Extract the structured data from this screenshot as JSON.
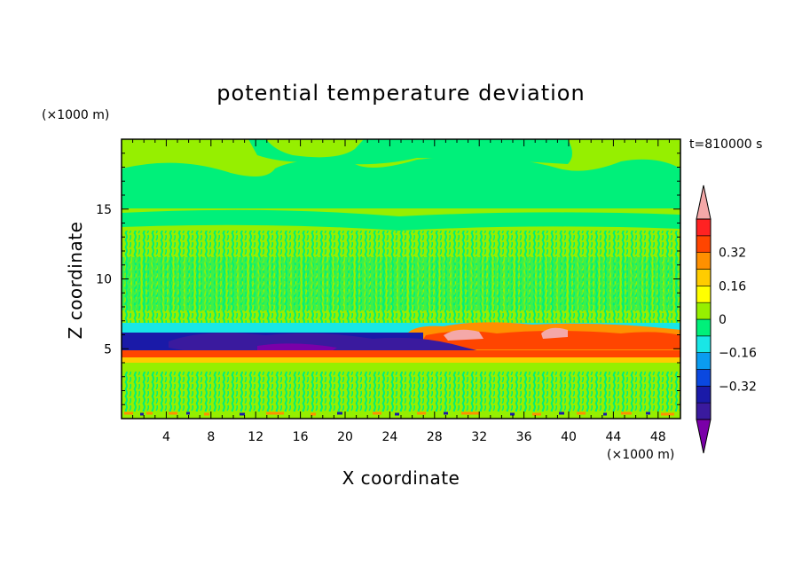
{
  "chart_data": {
    "type": "heatmap",
    "title": "potential temperature deviation",
    "xlabel": "X coordinate",
    "ylabel": "Z coordinate",
    "x_unit": "(×1000 m)",
    "y_unit": "(×1000 m)",
    "time_label": "t=810000 s",
    "xlim": [
      0,
      50
    ],
    "ylim": [
      0,
      20
    ],
    "x_ticks": [
      4,
      8,
      12,
      16,
      20,
      24,
      28,
      32,
      36,
      40,
      44,
      48
    ],
    "y_ticks": [
      5,
      10,
      15
    ],
    "colorbar": {
      "levels": [
        -0.48,
        -0.4,
        -0.32,
        -0.24,
        -0.16,
        -0.08,
        0,
        0.08,
        0.16,
        0.24,
        0.32,
        0.4,
        0.48
      ],
      "labeled_levels": [
        -0.32,
        -0.16,
        0,
        0.16,
        0.32
      ],
      "labels": [
        "0.32",
        "0.16",
        "0",
        "−0.16",
        "−0.32"
      ],
      "colors_bottom_to_top": [
        "#7a00a8",
        "#3a1a9e",
        "#1a1aa8",
        "#0a48e0",
        "#0a9cf0",
        "#19e6e6",
        "#00f07a",
        "#96ef00",
        "#ffff00",
        "#ffcc00",
        "#ff9000",
        "#ff4500",
        "#ff2222",
        "#f4a8a8"
      ]
    },
    "layers": [
      {
        "z_range": [
          17,
          20
        ],
        "value": 0.05
      },
      {
        "z_range": [
          12.5,
          17
        ],
        "value": 0.02
      },
      {
        "z_range": [
          7,
          12.5
        ],
        "value": 0.03
      },
      {
        "z_range": [
          6.3,
          7
        ],
        "value": -0.05
      },
      {
        "z_range": [
          5.1,
          6.3
        ],
        "value": -0.3
      },
      {
        "z_range": [
          4.5,
          5.1
        ],
        "value": 0.3
      },
      {
        "z_range": [
          4.1,
          4.5
        ],
        "value": 0.2
      },
      {
        "z_range": [
          0,
          4.1
        ],
        "value": 0.03
      }
    ]
  }
}
